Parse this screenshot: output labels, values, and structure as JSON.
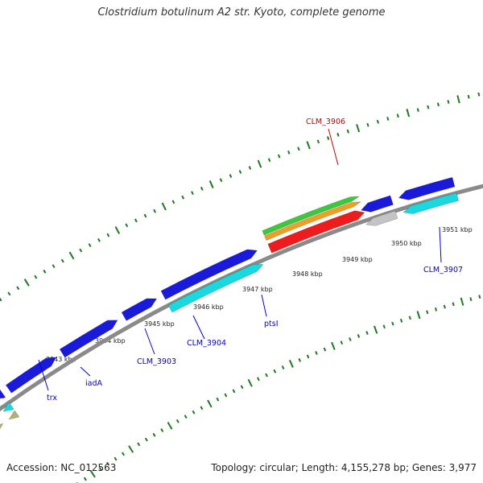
{
  "title": "Clostridium botulinum A2 str. Kyoto, complete genome",
  "footer": {
    "accession_label": "Accession:",
    "accession": "NC_012563",
    "summary": "Topology: circular; Length: 4,155,278 bp; Genes: 3,977"
  },
  "colors": {
    "backbone": "#8a8a8a",
    "tick": "#1d7a1d",
    "blue": "#1a1adb",
    "cyan": "#18d8e0",
    "olive": "#b8b070",
    "gray": "#c4c4c4",
    "green": "#3cc83c",
    "orange": "#f0a020",
    "red": "#ee1c1c",
    "label_blue": "#0000cc",
    "label_red": "#cc0000"
  },
  "tick_labels": [
    "3943 kbp",
    "3944 kbp",
    "3945 kbp",
    "3946 kbp",
    "3947 kbp",
    "3948 kbp",
    "3949 kbp",
    "3950 kbp",
    "3951 kbp"
  ],
  "genes": [
    {
      "id": "trx",
      "label": "trx"
    },
    {
      "id": "iadA",
      "label": "iadA"
    },
    {
      "id": "CLM_3903",
      "label": "CLM_3903"
    },
    {
      "id": "CLM_3904",
      "label": "CLM_3904"
    },
    {
      "id": "ptsI",
      "label": "ptsI"
    },
    {
      "id": "CLM_3906",
      "label": "CLM_3906",
      "highlight": true
    },
    {
      "id": "CLM_3907",
      "label": "CLM_3907"
    }
  ]
}
